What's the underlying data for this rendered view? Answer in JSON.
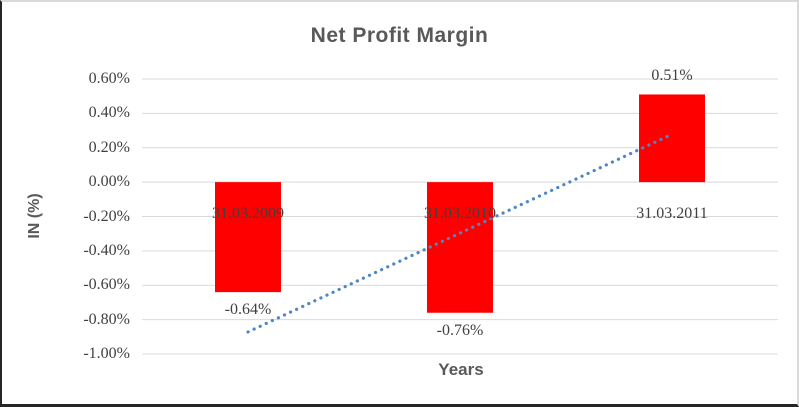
{
  "chart_data": {
    "type": "bar",
    "title": "Net Profit Margin",
    "xlabel": "Years",
    "ylabel": "IN (%)",
    "categories": [
      "31.03.2009",
      "31.03.2010",
      "31.03.2011"
    ],
    "values": [
      -0.64,
      -0.76,
      0.51
    ],
    "value_labels": [
      "-0.64%",
      "-0.76%",
      "0.51%"
    ],
    "ylim": [
      -1.0,
      0.6
    ],
    "ytick_step": 0.2,
    "ytick_labels": [
      "0.60%",
      "0.40%",
      "0.20%",
      "0.00%",
      "-0.20%",
      "-0.40%",
      "-0.60%",
      "-0.80%",
      "-1.00%"
    ],
    "grid": true,
    "legend": "none",
    "trendline": "linear-dotted",
    "colors": {
      "bar": "#ff0000",
      "trendline": "#4e86c6",
      "gridline": "#d9d9d9",
      "label_text": "#404040",
      "title_text": "#595959"
    }
  }
}
